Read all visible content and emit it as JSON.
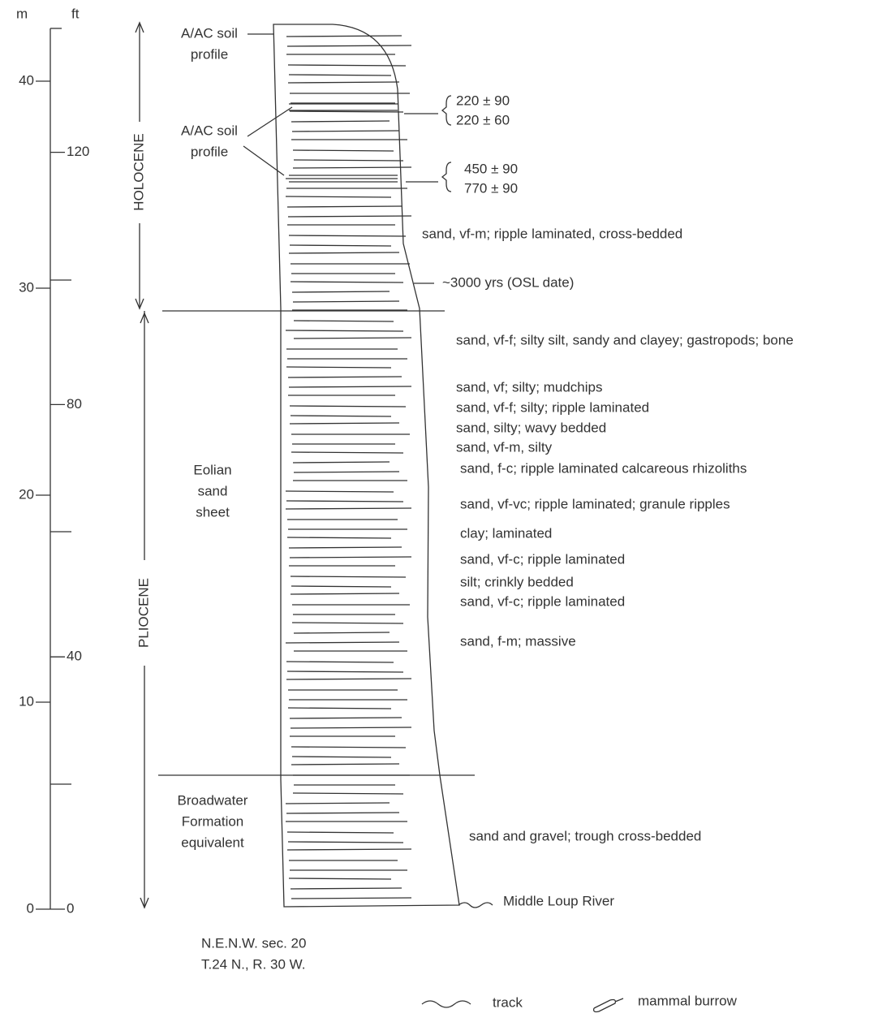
{
  "scale": {
    "m_unit": "m",
    "ft_unit": "ft",
    "m_ticks": [
      40,
      30,
      20,
      10,
      0
    ],
    "ft_ticks": [
      120,
      80,
      40,
      0
    ]
  },
  "periods": [
    "HOLOCENE",
    "PLIOCENE"
  ],
  "soil_profiles": [
    [
      "A/AC soil",
      "profile"
    ],
    [
      "A/AC soil",
      "profile"
    ]
  ],
  "units": [
    [
      "Eolian",
      "sand",
      "sheet"
    ],
    [
      "Broadwater",
      "Formation",
      "equivalent"
    ]
  ],
  "dates": [
    [
      "220 ± 90",
      "220 ± 60"
    ],
    [
      "450 ± 90",
      "770 ± 90"
    ]
  ],
  "osl_date": "~3000 yrs (OSL date)",
  "descriptions": [
    "sand, vf-m; ripple laminated, cross-bedded",
    "sand, vf-f; silty silt, sandy and clayey; gastropods; bone",
    "sand, vf; silty; mudchips",
    "sand, vf-f; silty; ripple laminated",
    "sand, silty; wavy bedded",
    "sand, vf-m, silty",
    "sand, f-c; ripple laminated calcareous rhizoliths",
    "sand, vf-vc; ripple laminated; granule ripples",
    "clay; laminated",
    "sand, vf-c; ripple laminated",
    "silt; crinkly bedded",
    "sand, vf-c; ripple laminated",
    "sand, f-m; massive",
    "sand and gravel; trough cross-bedded"
  ],
  "river": "Middle Loup River",
  "location": [
    "N.E.N.W. sec. 20",
    "T.24 N., R. 30 W."
  ],
  "legend": [
    "track",
    "mammal burrow"
  ]
}
